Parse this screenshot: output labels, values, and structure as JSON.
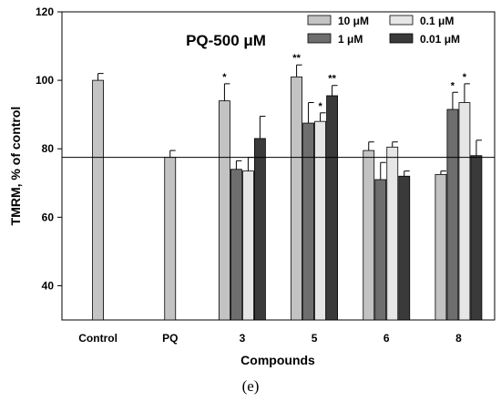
{
  "caption": "(e)",
  "chart_data": {
    "type": "bar",
    "title": "PQ-500 μM",
    "xlabel": "Compounds",
    "ylabel": "TMRM, % of control",
    "ylim": [
      30,
      120
    ],
    "yticks": [
      40,
      60,
      80,
      100,
      120
    ],
    "reference_line": 77.5,
    "legend_position": "top-right",
    "categories": [
      "Control",
      "PQ",
      "3",
      "5",
      "6",
      "8"
    ],
    "series": [
      {
        "name": "10 μM",
        "color": "#c3c3c3",
        "values": [
          100,
          77.5,
          94,
          101,
          79.5,
          72.5
        ],
        "errors": [
          2,
          2,
          5,
          3.5,
          2.5,
          1
        ],
        "significance": [
          "",
          "",
          "*",
          "**",
          "",
          ""
        ]
      },
      {
        "name": "1 μM",
        "color": "#6e6e6e",
        "values": [
          null,
          null,
          74,
          87.5,
          71,
          91.5
        ],
        "errors": [
          null,
          null,
          2.5,
          6,
          5,
          5
        ],
        "significance": [
          "",
          "",
          "",
          "",
          "",
          "*"
        ]
      },
      {
        "name": "0.1 μM",
        "color": "#e6e6e6",
        "values": [
          null,
          null,
          73.5,
          88,
          80.5,
          93.5
        ],
        "errors": [
          null,
          null,
          4,
          2.5,
          1.5,
          5.5
        ],
        "significance": [
          "",
          "",
          "",
          "*",
          "",
          "*"
        ]
      },
      {
        "name": "0.01 μM",
        "color": "#3a3a3a",
        "values": [
          null,
          null,
          83,
          95.5,
          72,
          78
        ],
        "errors": [
          null,
          null,
          6.5,
          3,
          1.5,
          4.5
        ],
        "significance": [
          "",
          "",
          "",
          "**",
          "",
          ""
        ]
      }
    ]
  }
}
